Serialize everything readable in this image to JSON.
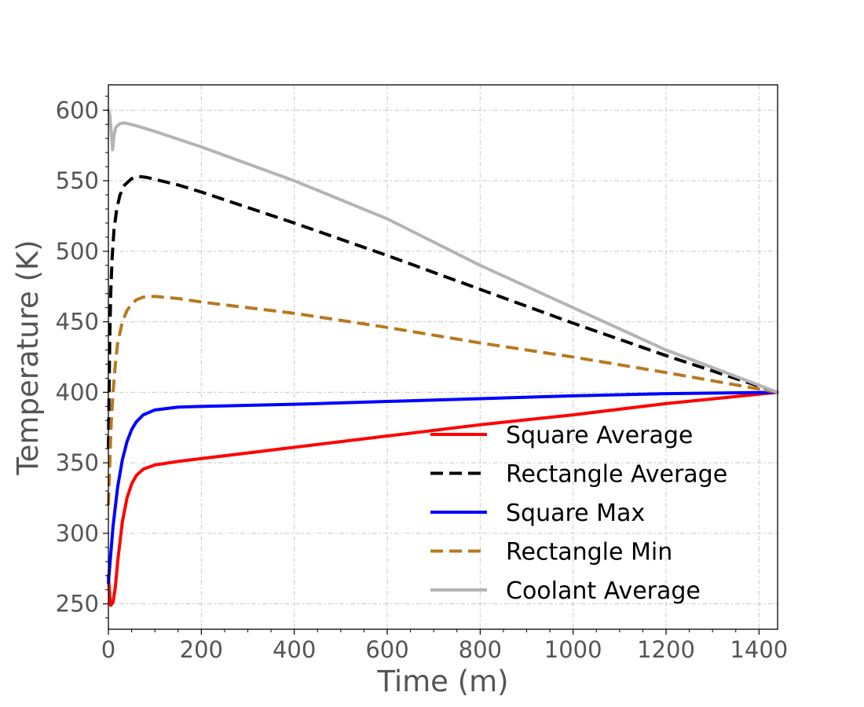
{
  "chart_data": {
    "type": "line",
    "title": "",
    "xlabel": "Time (m)",
    "ylabel": "Temperature (K)",
    "xlim": [
      0,
      1440
    ],
    "ylim": [
      232,
      618
    ],
    "x_ticks": [
      0,
      200,
      400,
      600,
      800,
      1000,
      1200,
      1400
    ],
    "y_ticks": [
      250,
      300,
      350,
      400,
      450,
      500,
      550,
      600
    ],
    "grid": true,
    "legend_position": "lower-right",
    "series": [
      {
        "name": "Square Average",
        "color": "#ff0000",
        "style": "solid",
        "points": [
          [
            0,
            270
          ],
          [
            3,
            255
          ],
          [
            5,
            249
          ],
          [
            10,
            251
          ],
          [
            15,
            262
          ],
          [
            20,
            280
          ],
          [
            30,
            308
          ],
          [
            40,
            325
          ],
          [
            50,
            335
          ],
          [
            60,
            341
          ],
          [
            75,
            345.5
          ],
          [
            100,
            348.5
          ],
          [
            150,
            351
          ],
          [
            200,
            353
          ],
          [
            300,
            357
          ],
          [
            400,
            361
          ],
          [
            600,
            369
          ],
          [
            800,
            377
          ],
          [
            1000,
            384
          ],
          [
            1200,
            392
          ],
          [
            1440,
            400
          ]
        ]
      },
      {
        "name": "Rectangle Average",
        "color": "#000000",
        "style": "dashed",
        "points": [
          [
            0,
            360
          ],
          [
            3,
            440
          ],
          [
            5,
            470
          ],
          [
            8,
            495
          ],
          [
            12,
            515
          ],
          [
            18,
            530
          ],
          [
            25,
            540
          ],
          [
            35,
            547
          ],
          [
            50,
            551.5
          ],
          [
            65,
            553
          ],
          [
            80,
            552.5
          ],
          [
            100,
            551
          ],
          [
            150,
            547
          ],
          [
            200,
            542
          ],
          [
            400,
            520
          ],
          [
            600,
            497
          ],
          [
            800,
            473
          ],
          [
            1000,
            449
          ],
          [
            1200,
            426
          ],
          [
            1440,
            400
          ]
        ]
      },
      {
        "name": "Square Max",
        "color": "#0000ff",
        "style": "solid",
        "points": [
          [
            0,
            265
          ],
          [
            5,
            285
          ],
          [
            10,
            305
          ],
          [
            20,
            333
          ],
          [
            30,
            352
          ],
          [
            40,
            365
          ],
          [
            50,
            373.5
          ],
          [
            60,
            379
          ],
          [
            75,
            384
          ],
          [
            100,
            387.5
          ],
          [
            150,
            389.5
          ],
          [
            200,
            390
          ],
          [
            400,
            391.5
          ],
          [
            600,
            393.5
          ],
          [
            800,
            395.5
          ],
          [
            1000,
            397.5
          ],
          [
            1200,
            399
          ],
          [
            1440,
            400
          ]
        ]
      },
      {
        "name": "Rectangle Min",
        "color": "#b87820",
        "style": "dashed",
        "points": [
          [
            0,
            320
          ],
          [
            3,
            350
          ],
          [
            6,
            378
          ],
          [
            10,
            400
          ],
          [
            15,
            420
          ],
          [
            20,
            435
          ],
          [
            30,
            450
          ],
          [
            40,
            458
          ],
          [
            50,
            462.5
          ],
          [
            60,
            465.5
          ],
          [
            75,
            467.5
          ],
          [
            100,
            468
          ],
          [
            150,
            466.5
          ],
          [
            200,
            464
          ],
          [
            400,
            456
          ],
          [
            600,
            446
          ],
          [
            800,
            435
          ],
          [
            1000,
            425
          ],
          [
            1200,
            414
          ],
          [
            1440,
            400
          ]
        ]
      },
      {
        "name": "Coolant Average",
        "color": "#b4b4b4",
        "style": "solid",
        "points": [
          [
            0,
            600
          ],
          [
            3,
            597
          ],
          [
            6,
            585
          ],
          [
            9,
            572
          ],
          [
            12,
            582
          ],
          [
            16,
            588
          ],
          [
            25,
            590.5
          ],
          [
            35,
            591
          ],
          [
            60,
            589
          ],
          [
            100,
            585
          ],
          [
            200,
            574
          ],
          [
            400,
            550
          ],
          [
            600,
            523
          ],
          [
            800,
            490
          ],
          [
            1000,
            460
          ],
          [
            1200,
            430
          ],
          [
            1440,
            400
          ]
        ]
      }
    ]
  }
}
